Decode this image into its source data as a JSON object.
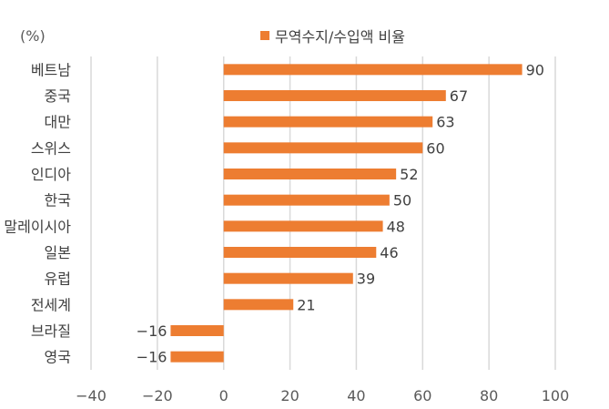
{
  "unit_label": "(%)",
  "accent_color": "#ED7D31",
  "chart_data": {
    "type": "bar",
    "orientation": "horizontal",
    "categories": [
      "베트남",
      "중국",
      "대만",
      "스위스",
      "인디아",
      "한국",
      "말레이시아",
      "일본",
      "유럽",
      "전세계",
      "브라질",
      "영국"
    ],
    "series": [
      {
        "name": "무역수지/수입액 비율",
        "values": [
          90,
          67,
          63,
          60,
          52,
          50,
          48,
          46,
          39,
          21,
          -16,
          -16
        ],
        "color": "#ED7D31"
      }
    ],
    "xlim": [
      -40,
      100
    ],
    "xticks": [
      -40,
      -20,
      0,
      20,
      40,
      60,
      80,
      100
    ],
    "grid": true,
    "legend_position": "top-center",
    "data_labels": true
  }
}
